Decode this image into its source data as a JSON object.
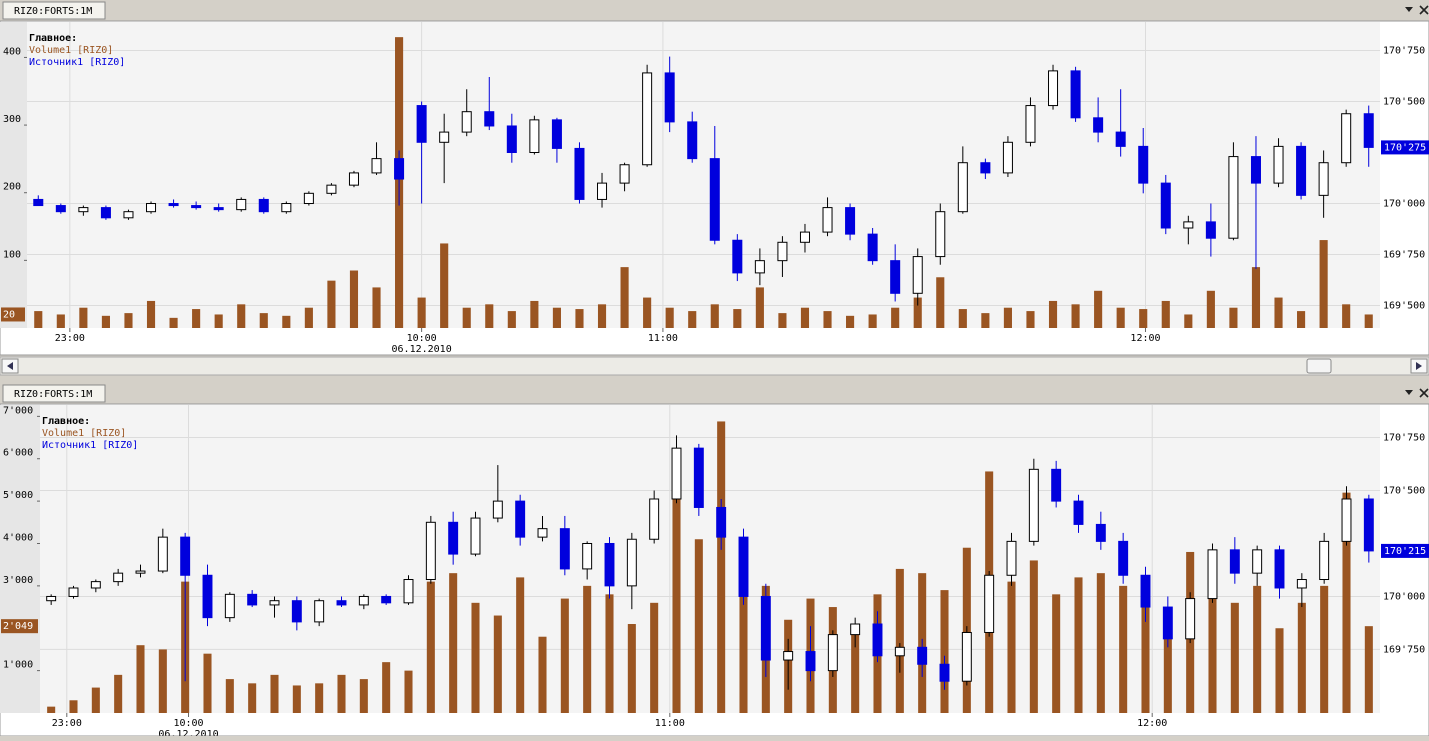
{
  "chart_data": [
    {
      "type": "candlestick",
      "tab": "RIZ0:FORTS:1M",
      "legend_title": "Главное:",
      "xlim": [
        0,
        60
      ],
      "xticks": [
        {
          "value": 1.9,
          "label": "23:00"
        },
        {
          "value": 17.5,
          "label": "10:00"
        },
        {
          "value": 28.2,
          "label": "11:00"
        },
        {
          "value": 49.6,
          "label": "12:00"
        }
      ],
      "date_label": "06.12.2010",
      "ylim": [
        0,
        445
      ],
      "yticks": [
        100,
        200,
        300,
        400
      ],
      "y2lim": [
        169390,
        170865
      ],
      "y2ticks": [
        {
          "value": 169500,
          "label": "169'500"
        },
        {
          "value": 169750,
          "label": "169'750"
        },
        {
          "value": 170000,
          "label": "170'000"
        },
        {
          "value": 170500,
          "label": "170'500"
        },
        {
          "value": 170750,
          "label": "170'750"
        }
      ],
      "grid": true,
      "last_volume_label": "20",
      "last_close_label": "170'275",
      "series": [
        {
          "name": "Volume1 [RIZ0]",
          "color": "#9a5522",
          "axis": "y",
          "values": [
            25,
            20,
            30,
            18,
            22,
            40,
            15,
            28,
            20,
            35,
            22,
            18,
            30,
            70,
            85,
            60,
            430,
            45,
            125,
            30,
            35,
            25,
            40,
            30,
            28,
            35,
            90,
            45,
            30,
            25,
            35,
            28,
            60,
            22,
            30,
            25,
            18,
            20,
            30,
            45,
            75,
            28,
            22,
            30,
            25,
            40,
            35,
            55,
            30,
            28,
            40,
            20,
            55,
            30,
            90,
            45,
            25,
            130,
            35,
            20
          ]
        },
        {
          "name": "Источник1 [RIZ0]",
          "color": "#0000dd",
          "up_color": "#ffffff",
          "axis": "y2",
          "open": [
            170020,
            169990,
            169960,
            169980,
            169930,
            169960,
            170000,
            169990,
            169980,
            169970,
            170020,
            169960,
            170000,
            170050,
            170090,
            170150,
            170220,
            170480,
            170300,
            170350,
            170450,
            170380,
            170250,
            170410,
            170270,
            170020,
            170100,
            170190,
            170640,
            170400,
            170220,
            169820,
            169660,
            169720,
            169810,
            169860,
            169980,
            169850,
            169720,
            169560,
            169740,
            169960,
            170200,
            170150,
            170300,
            170480,
            170650,
            170420,
            170350,
            170280,
            170100,
            169880,
            169910,
            169830,
            170230,
            170100,
            170280,
            170040,
            170200,
            170440
          ],
          "high": [
            170040,
            170000,
            169990,
            169990,
            169970,
            170010,
            170020,
            170010,
            170000,
            170030,
            170030,
            170010,
            170060,
            170100,
            170160,
            170300,
            170260,
            170500,
            170440,
            170560,
            170620,
            170440,
            170430,
            170420,
            170300,
            170150,
            170200,
            170680,
            170720,
            170450,
            170380,
            169850,
            169780,
            169840,
            169900,
            170030,
            170000,
            169880,
            169800,
            169780,
            170000,
            170280,
            170220,
            170330,
            170520,
            170680,
            170670,
            170520,
            170560,
            170370,
            170140,
            169940,
            170000,
            170300,
            170330,
            170320,
            170300,
            170260,
            170460,
            170480
          ],
          "low": [
            169990,
            169950,
            169940,
            169920,
            169920,
            169950,
            169980,
            169970,
            169960,
            169960,
            169950,
            169950,
            169990,
            170040,
            170080,
            170140,
            169990,
            170000,
            170100,
            170330,
            170360,
            170200,
            170240,
            170200,
            170000,
            169980,
            170060,
            170180,
            170350,
            170200,
            169800,
            169620,
            169600,
            169640,
            169760,
            169840,
            169820,
            169700,
            169520,
            169500,
            169700,
            169950,
            170120,
            170130,
            170280,
            170460,
            170400,
            170300,
            170230,
            170050,
            169850,
            169800,
            169740,
            169820,
            169680,
            170080,
            170020,
            169930,
            170180,
            170180
          ],
          "close": [
            169990,
            169960,
            169980,
            169930,
            169960,
            170000,
            169990,
            169980,
            169970,
            170020,
            169960,
            170000,
            170050,
            170090,
            170150,
            170220,
            170120,
            170300,
            170350,
            170450,
            170380,
            170250,
            170410,
            170270,
            170020,
            170100,
            170190,
            170640,
            170400,
            170220,
            169820,
            169660,
            169720,
            169810,
            169860,
            169980,
            169850,
            169720,
            169560,
            169740,
            169960,
            170200,
            170150,
            170300,
            170480,
            170650,
            170420,
            170350,
            170280,
            170100,
            169880,
            169910,
            169830,
            170230,
            170100,
            170280,
            170040,
            170200,
            170440,
            170275
          ]
        }
      ]
    },
    {
      "type": "candlestick",
      "tab": "RIZ0:FORTS:1M",
      "legend_title": "Главное:",
      "xlim": [
        0,
        60
      ],
      "xticks": [
        {
          "value": 1.2,
          "label": "23:00"
        },
        {
          "value": 6.65,
          "label": "10:00"
        },
        {
          "value": 28.2,
          "label": "11:00"
        },
        {
          "value": 49.8,
          "label": "12:00"
        }
      ],
      "date_label": "06.12.2010",
      "ylim": [
        0,
        7150
      ],
      "yticks": [
        {
          "value": 1000,
          "label": "1'000"
        },
        {
          "value": 3000,
          "label": "3'000"
        },
        {
          "value": 4000,
          "label": "4'000"
        },
        {
          "value": 5000,
          "label": "5'000"
        },
        {
          "value": 6000,
          "label": "6'000"
        },
        {
          "value": 7000,
          "label": "7'000"
        }
      ],
      "y2lim": [
        169450,
        170880
      ],
      "y2ticks": [
        {
          "value": 169750,
          "label": "169'750"
        },
        {
          "value": 170000,
          "label": "170'000"
        },
        {
          "value": 170500,
          "label": "170'500"
        },
        {
          "value": 170750,
          "label": "170'750"
        }
      ],
      "grid": true,
      "last_volume_label": "2'049",
      "last_close_label": "170'215",
      "series": [
        {
          "name": "Volume1 [RIZ0]",
          "color": "#9a5522",
          "axis": "y",
          "values": [
            150,
            300,
            600,
            900,
            1600,
            1500,
            3100,
            1400,
            800,
            700,
            900,
            650,
            700,
            900,
            800,
            1200,
            1000,
            3100,
            3300,
            2600,
            2300,
            3200,
            1800,
            2700,
            3000,
            2800,
            2100,
            2600,
            5700,
            4100,
            6880,
            3400,
            3000,
            2200,
            2700,
            2500,
            2100,
            2800,
            3400,
            3300,
            2900,
            3900,
            5700,
            3100,
            3600,
            2800,
            3200,
            3300,
            3000,
            2700,
            2400,
            3800,
            3500,
            2600,
            3000,
            2000,
            2600,
            3000,
            5200,
            2049
          ]
        },
        {
          "name": "Источник1 [RIZ0]",
          "color": "#0000dd",
          "up_color": "#ffffff",
          "axis": "y2",
          "open": [
            169980,
            170000,
            170040,
            170070,
            170110,
            170120,
            170280,
            170100,
            169900,
            170010,
            169960,
            169980,
            169880,
            169980,
            169960,
            170000,
            169970,
            170080,
            170350,
            170200,
            170370,
            170450,
            170280,
            170320,
            170130,
            170250,
            170050,
            170270,
            170460,
            170700,
            170420,
            170280,
            170000,
            169700,
            169740,
            169650,
            169820,
            169870,
            169720,
            169760,
            169680,
            169600,
            169830,
            170100,
            170260,
            170600,
            170450,
            170340,
            170260,
            170100,
            169950,
            169800,
            169990,
            170220,
            170110,
            170220,
            170040,
            170080,
            170260,
            170460
          ],
          "high": [
            170010,
            170050,
            170080,
            170130,
            170150,
            170320,
            170300,
            170150,
            170020,
            170030,
            170000,
            170000,
            169990,
            170000,
            170010,
            170010,
            170100,
            170380,
            170400,
            170400,
            170620,
            170480,
            170380,
            170380,
            170260,
            170280,
            170300,
            170500,
            170760,
            170720,
            170460,
            170320,
            170060,
            169800,
            169860,
            169840,
            169900,
            169930,
            169780,
            169800,
            169720,
            169860,
            170120,
            170300,
            170650,
            170640,
            170480,
            170400,
            170300,
            170140,
            170000,
            170020,
            170250,
            170280,
            170240,
            170240,
            170110,
            170300,
            170520,
            170480
          ],
          "low": [
            169960,
            169990,
            170020,
            170050,
            170090,
            170110,
            169600,
            169860,
            169880,
            169950,
            169900,
            169840,
            169860,
            169950,
            169940,
            169960,
            169960,
            170060,
            170150,
            170190,
            170350,
            170240,
            170260,
            170100,
            170080,
            169990,
            169940,
            170250,
            170440,
            170380,
            170220,
            169960,
            169620,
            169560,
            169600,
            169620,
            169760,
            169690,
            169640,
            169620,
            169560,
            169580,
            169810,
            170050,
            170240,
            170420,
            170300,
            170220,
            170060,
            169880,
            169760,
            169780,
            169970,
            170060,
            170050,
            169990,
            169950,
            170060,
            170240,
            170160
          ],
          "close": [
            170000,
            170040,
            170070,
            170110,
            170120,
            170280,
            170100,
            169900,
            170010,
            169960,
            169980,
            169880,
            169980,
            169960,
            170000,
            169970,
            170080,
            170350,
            170200,
            170370,
            170450,
            170280,
            170320,
            170130,
            170250,
            170050,
            170270,
            170460,
            170700,
            170420,
            170280,
            170000,
            169700,
            169740,
            169650,
            169820,
            169870,
            169720,
            169760,
            169680,
            169600,
            169830,
            170100,
            170260,
            170600,
            170450,
            170340,
            170260,
            170100,
            169950,
            169800,
            169990,
            170220,
            170110,
            170220,
            170040,
            170080,
            170260,
            170460,
            170215
          ]
        }
      ]
    }
  ]
}
